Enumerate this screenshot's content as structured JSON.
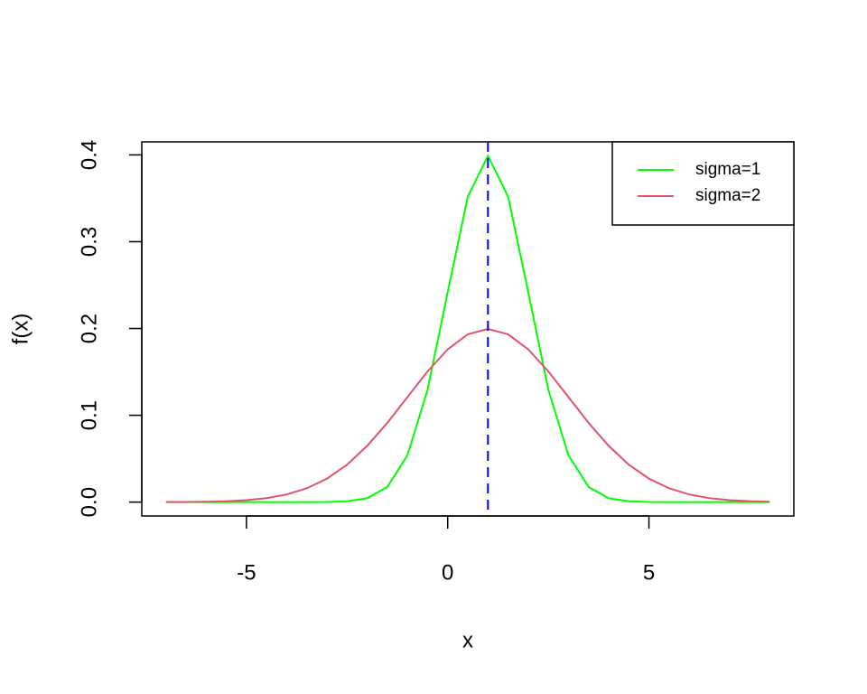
{
  "chart_data": {
    "type": "line",
    "xlabel": "x",
    "ylabel": "f(x)",
    "x": [
      -7,
      -6.5,
      -6,
      -5.5,
      -5,
      -4.5,
      -4,
      -3.5,
      -3,
      -2.5,
      -2,
      -1.5,
      -1,
      -0.5,
      0,
      0.5,
      1,
      1.5,
      2,
      2.5,
      3,
      3.5,
      4,
      4.5,
      5,
      5.5,
      6,
      6.5,
      7,
      7.5,
      8
    ],
    "series": [
      {
        "name": "sigma=1",
        "color": "#00ff00",
        "values": [
          0,
          0,
          0,
          0,
          0,
          0,
          0,
          0,
          0.0001,
          0.0009,
          0.0044,
          0.0175,
          0.054,
          0.1295,
          0.242,
          0.3521,
          0.3989,
          0.3521,
          0.242,
          0.1295,
          0.054,
          0.0175,
          0.0044,
          0.0009,
          0.0001,
          0,
          0,
          0,
          0,
          0,
          0
        ]
      },
      {
        "name": "sigma=2",
        "color": "#df536b",
        "values": [
          0.0001,
          0.0002,
          0.0004,
          0.001,
          0.0022,
          0.0046,
          0.0088,
          0.0159,
          0.027,
          0.0431,
          0.0648,
          0.0913,
          0.121,
          0.1506,
          0.176,
          0.1933,
          0.1995,
          0.1933,
          0.176,
          0.1506,
          0.121,
          0.0913,
          0.0648,
          0.0431,
          0.027,
          0.0159,
          0.0088,
          0.0046,
          0.0022,
          0.001,
          0.0004
        ]
      }
    ],
    "vline": {
      "x": 1,
      "color": "#0000ff"
    },
    "xlim": [
      -7.6,
      8.6
    ],
    "xticks": [
      -5,
      0,
      5
    ],
    "ylim": [
      -0.016,
      0.415
    ],
    "yticks": [
      {
        "value": 0,
        "label": "0.0"
      },
      0.1,
      0.2,
      0.3,
      0.4
    ],
    "legend": "top-right"
  }
}
